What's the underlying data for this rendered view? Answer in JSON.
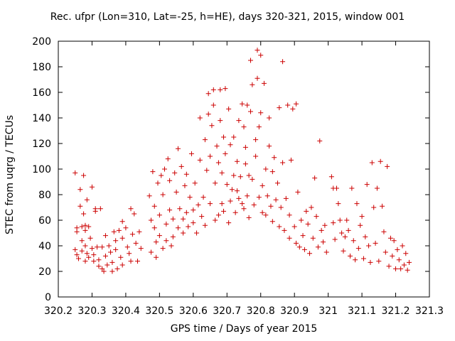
{
  "chart_data": {
    "type": "scatter",
    "title": "Rec. ufpr (Lon=310, Lat=-25, h=HE), days 320-321, 2015, window 001",
    "xlabel": "GPS time / Days of year 2015",
    "ylabel": "STEC from uqrg / TECUs",
    "xlim": [
      320.2,
      321.3
    ],
    "ylim": [
      0,
      200
    ],
    "xticks": [
      "320.2",
      "320.3",
      "320.4",
      "320.5",
      "320.6",
      "320.7",
      "320.8",
      "320.9",
      "321",
      "321.1",
      "321.2",
      "321.3"
    ],
    "yticks": [
      "0",
      "20",
      "40",
      "60",
      "80",
      "100",
      "120",
      "140",
      "160",
      "180",
      "200"
    ],
    "marker": "plus",
    "color": "#cc0000",
    "grid": false,
    "points": [
      [
        320.25,
        97
      ],
      [
        320.255,
        54
      ],
      [
        320.255,
        51
      ],
      [
        320.25,
        37
      ],
      [
        320.255,
        33
      ],
      [
        320.26,
        30
      ],
      [
        320.265,
        84
      ],
      [
        320.265,
        71
      ],
      [
        320.27,
        55
      ],
      [
        320.27,
        44
      ],
      [
        320.27,
        36
      ],
      [
        320.275,
        95
      ],
      [
        320.275,
        65
      ],
      [
        320.28,
        56
      ],
      [
        320.28,
        52
      ],
      [
        320.28,
        40
      ],
      [
        320.28,
        28
      ],
      [
        320.285,
        76
      ],
      [
        320.285,
        34
      ],
      [
        320.29,
        31
      ],
      [
        320.29,
        55
      ],
      [
        320.295,
        46
      ],
      [
        320.3,
        86
      ],
      [
        320.3,
        38
      ],
      [
        320.305,
        33
      ],
      [
        320.305,
        28
      ],
      [
        320.31,
        69
      ],
      [
        320.31,
        67
      ],
      [
        320.315,
        39
      ],
      [
        320.32,
        29
      ],
      [
        320.32,
        24
      ],
      [
        320.325,
        69
      ],
      [
        320.33,
        39
      ],
      [
        320.33,
        22
      ],
      [
        320.335,
        20
      ],
      [
        320.34,
        48
      ],
      [
        320.34,
        32
      ],
      [
        320.345,
        25
      ],
      [
        320.35,
        40
      ],
      [
        320.355,
        35
      ],
      [
        320.36,
        27
      ],
      [
        320.36,
        20
      ],
      [
        320.365,
        51
      ],
      [
        320.37,
        44
      ],
      [
        320.37,
        37
      ],
      [
        320.375,
        22
      ],
      [
        320.38,
        52
      ],
      [
        320.385,
        31
      ],
      [
        320.39,
        59
      ],
      [
        320.39,
        46
      ],
      [
        320.39,
        25
      ],
      [
        320.4,
        54
      ],
      [
        320.405,
        39
      ],
      [
        320.41,
        34
      ],
      [
        320.415,
        69
      ],
      [
        320.415,
        28
      ],
      [
        320.42,
        49
      ],
      [
        320.425,
        65
      ],
      [
        320.43,
        42
      ],
      [
        320.435,
        28
      ],
      [
        320.44,
        51
      ],
      [
        320.445,
        38
      ],
      [
        320.47,
        79
      ],
      [
        320.475,
        60
      ],
      [
        320.475,
        35
      ],
      [
        320.48,
        98
      ],
      [
        320.485,
        71
      ],
      [
        320.485,
        54
      ],
      [
        320.49,
        43
      ],
      [
        320.49,
        31
      ],
      [
        320.495,
        89
      ],
      [
        320.5,
        64
      ],
      [
        320.5,
        48
      ],
      [
        320.505,
        95
      ],
      [
        320.51,
        80
      ],
      [
        320.51,
        38
      ],
      [
        320.515,
        100
      ],
      [
        320.52,
        57
      ],
      [
        320.52,
        44
      ],
      [
        320.525,
        108
      ],
      [
        320.53,
        91
      ],
      [
        320.53,
        68
      ],
      [
        320.535,
        40
      ],
      [
        320.54,
        61
      ],
      [
        320.54,
        47
      ],
      [
        320.545,
        97
      ],
      [
        320.55,
        82
      ],
      [
        320.555,
        116
      ],
      [
        320.555,
        54
      ],
      [
        320.56,
        69
      ],
      [
        320.565,
        102
      ],
      [
        320.57,
        61
      ],
      [
        320.57,
        50
      ],
      [
        320.575,
        87
      ],
      [
        320.58,
        96
      ],
      [
        320.58,
        66
      ],
      [
        320.585,
        55
      ],
      [
        320.59,
        78
      ],
      [
        320.595,
        112
      ],
      [
        320.6,
        68
      ],
      [
        320.6,
        58
      ],
      [
        320.605,
        89
      ],
      [
        320.61,
        50
      ],
      [
        320.615,
        72
      ],
      [
        320.62,
        140
      ],
      [
        320.62,
        107
      ],
      [
        320.625,
        63
      ],
      [
        320.63,
        78
      ],
      [
        320.635,
        123
      ],
      [
        320.635,
        56
      ],
      [
        320.64,
        99
      ],
      [
        320.645,
        143
      ],
      [
        320.645,
        159
      ],
      [
        320.65,
        110
      ],
      [
        320.65,
        73
      ],
      [
        320.655,
        134
      ],
      [
        320.66,
        162
      ],
      [
        320.66,
        150
      ],
      [
        320.665,
        89
      ],
      [
        320.665,
        60
      ],
      [
        320.67,
        118
      ],
      [
        320.675,
        105
      ],
      [
        320.675,
        64
      ],
      [
        320.68,
        162
      ],
      [
        320.68,
        138
      ],
      [
        320.685,
        97
      ],
      [
        320.685,
        73
      ],
      [
        320.69,
        125
      ],
      [
        320.69,
        67
      ],
      [
        320.695,
        163
      ],
      [
        320.695,
        112
      ],
      [
        320.7,
        88
      ],
      [
        320.705,
        147
      ],
      [
        320.705,
        58
      ],
      [
        320.71,
        119
      ],
      [
        320.71,
        75
      ],
      [
        320.715,
        84
      ],
      [
        320.72,
        125
      ],
      [
        320.72,
        95
      ],
      [
        320.725,
        66
      ],
      [
        320.73,
        106
      ],
      [
        320.73,
        83
      ],
      [
        320.735,
        138
      ],
      [
        320.735,
        77
      ],
      [
        320.74,
        94
      ],
      [
        320.745,
        151
      ],
      [
        320.745,
        73
      ],
      [
        320.75,
        133
      ],
      [
        320.75,
        69
      ],
      [
        320.755,
        117
      ],
      [
        320.755,
        104
      ],
      [
        320.76,
        150
      ],
      [
        320.76,
        79
      ],
      [
        320.765,
        95
      ],
      [
        320.765,
        62
      ],
      [
        320.77,
        185
      ],
      [
        320.77,
        145
      ],
      [
        320.775,
        166
      ],
      [
        320.775,
        92
      ],
      [
        320.78,
        72
      ],
      [
        320.785,
        123
      ],
      [
        320.785,
        110
      ],
      [
        320.79,
        193
      ],
      [
        320.79,
        171
      ],
      [
        320.795,
        133
      ],
      [
        320.795,
        78
      ],
      [
        320.8,
        189
      ],
      [
        320.8,
        144
      ],
      [
        320.805,
        87
      ],
      [
        320.805,
        66
      ],
      [
        320.81,
        167
      ],
      [
        320.815,
        100
      ],
      [
        320.815,
        64
      ],
      [
        320.82,
        79
      ],
      [
        320.825,
        140
      ],
      [
        320.825,
        118
      ],
      [
        320.83,
        71
      ],
      [
        320.835,
        98
      ],
      [
        320.835,
        59
      ],
      [
        320.84,
        109
      ],
      [
        320.845,
        76
      ],
      [
        320.85,
        89
      ],
      [
        320.855,
        148
      ],
      [
        320.855,
        55
      ],
      [
        320.86,
        70
      ],
      [
        320.865,
        184
      ],
      [
        320.865,
        105
      ],
      [
        320.87,
        52
      ],
      [
        320.875,
        77
      ],
      [
        320.88,
        150
      ],
      [
        320.885,
        64
      ],
      [
        320.885,
        46
      ],
      [
        320.89,
        107
      ],
      [
        320.895,
        147
      ],
      [
        320.9,
        55
      ],
      [
        320.905,
        151
      ],
      [
        320.905,
        42
      ],
      [
        320.91,
        82
      ],
      [
        320.915,
        39
      ],
      [
        320.92,
        60
      ],
      [
        320.925,
        48
      ],
      [
        320.93,
        37
      ],
      [
        320.935,
        67
      ],
      [
        320.94,
        57
      ],
      [
        320.945,
        34
      ],
      [
        320.95,
        70
      ],
      [
        320.955,
        46
      ],
      [
        320.96,
        93
      ],
      [
        320.965,
        63
      ],
      [
        320.97,
        39
      ],
      [
        320.975,
        122
      ],
      [
        320.98,
        52
      ],
      [
        320.985,
        43
      ],
      [
        320.99,
        56
      ],
      [
        320.995,
        35
      ],
      [
        321.01,
        94
      ],
      [
        321.015,
        85
      ],
      [
        321.015,
        58
      ],
      [
        321.02,
        45
      ],
      [
        321.025,
        85
      ],
      [
        321.03,
        73
      ],
      [
        321.035,
        60
      ],
      [
        321.04,
        50
      ],
      [
        321.045,
        36
      ],
      [
        321.05,
        47
      ],
      [
        321.055,
        60
      ],
      [
        321.06,
        52
      ],
      [
        321.065,
        32
      ],
      [
        321.07,
        85
      ],
      [
        321.075,
        44
      ],
      [
        321.08,
        29
      ],
      [
        321.085,
        73
      ],
      [
        321.09,
        38
      ],
      [
        321.095,
        56
      ],
      [
        321.1,
        63
      ],
      [
        321.105,
        30
      ],
      [
        321.11,
        47
      ],
      [
        321.115,
        88
      ],
      [
        321.12,
        40
      ],
      [
        321.125,
        27
      ],
      [
        321.13,
        105
      ],
      [
        321.135,
        70
      ],
      [
        321.14,
        42
      ],
      [
        321.145,
        85
      ],
      [
        321.15,
        28
      ],
      [
        321.155,
        106
      ],
      [
        321.16,
        71
      ],
      [
        321.165,
        51
      ],
      [
        321.17,
        35
      ],
      [
        321.175,
        102
      ],
      [
        321.18,
        24
      ],
      [
        321.185,
        46
      ],
      [
        321.19,
        32
      ],
      [
        321.195,
        44
      ],
      [
        321.2,
        22
      ],
      [
        321.205,
        37
      ],
      [
        321.21,
        29
      ],
      [
        321.215,
        22
      ],
      [
        321.22,
        40
      ],
      [
        321.225,
        25
      ],
      [
        321.23,
        34
      ],
      [
        321.235,
        21
      ],
      [
        321.24,
        27
      ]
    ]
  }
}
